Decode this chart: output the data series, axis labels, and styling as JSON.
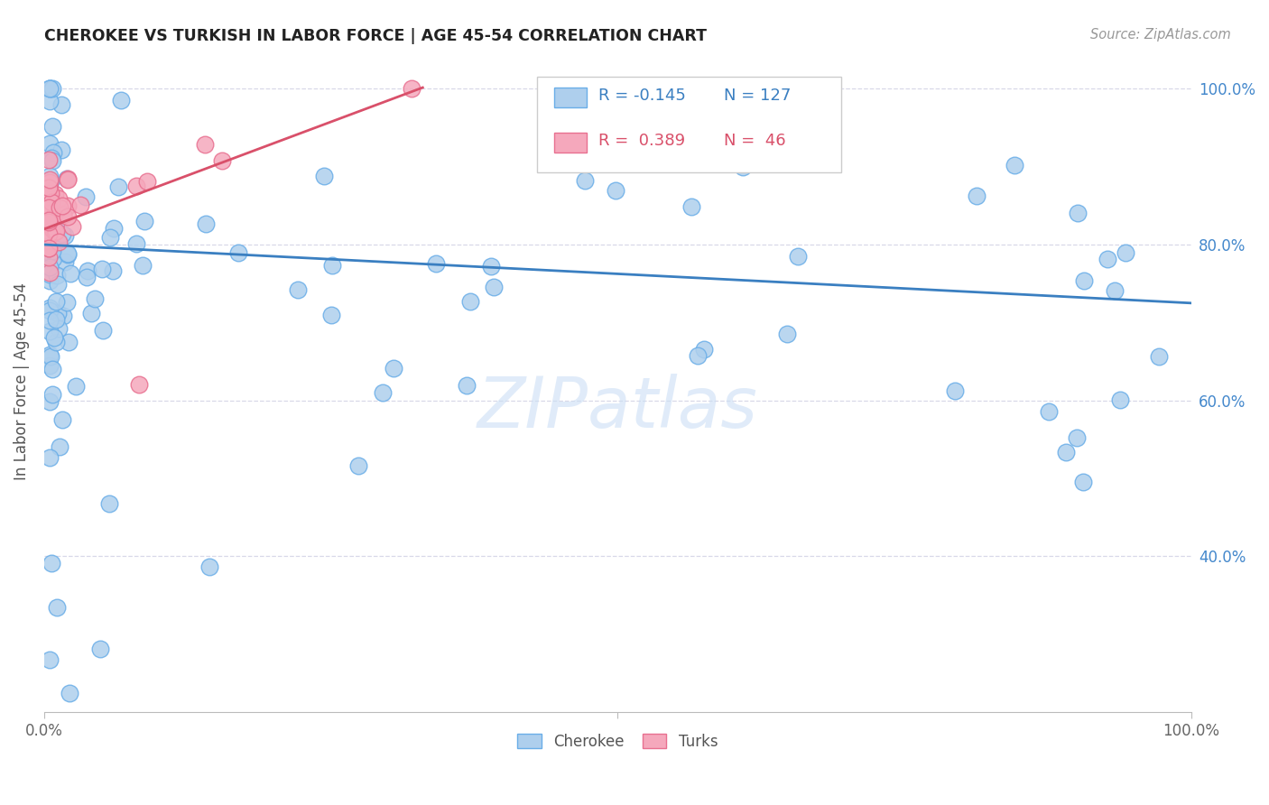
{
  "title": "CHEROKEE VS TURKISH IN LABOR FORCE | AGE 45-54 CORRELATION CHART",
  "source": "Source: ZipAtlas.com",
  "ylabel": "In Labor Force | Age 45-54",
  "legend_blue_r": "-0.145",
  "legend_blue_n": "127",
  "legend_pink_r": "0.389",
  "legend_pink_n": "46",
  "watermark": "ZIPatlas",
  "blue_color": "#aecfed",
  "blue_edge": "#6aaee8",
  "pink_color": "#f5a8bc",
  "pink_edge": "#e87090",
  "blue_line_color": "#3a7fc1",
  "pink_line_color": "#d9506a",
  "grid_color": "#d8d8e8",
  "xlim": [
    0.0,
    1.0
  ],
  "ylim": [
    0.2,
    1.05
  ],
  "yticks": [
    0.4,
    0.6,
    0.8,
    1.0
  ],
  "ytick_labels": [
    "40.0%",
    "60.0%",
    "80.0%",
    "100.0%"
  ],
  "xtick_labels": [
    "0.0%",
    "100.0%"
  ]
}
